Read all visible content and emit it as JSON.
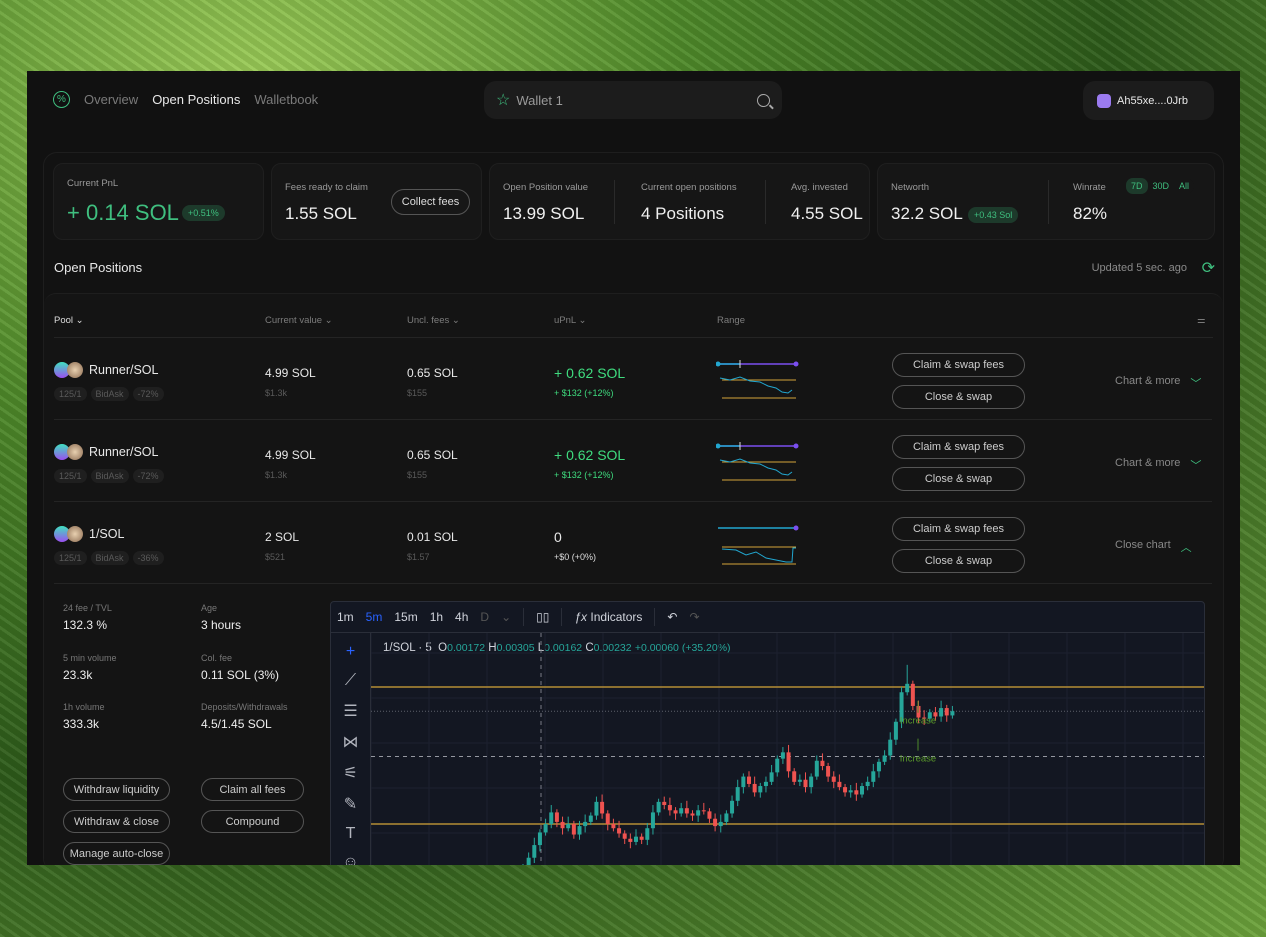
{
  "nav": {
    "items": [
      "Overview",
      "Open Positions",
      "Walletbook"
    ],
    "active": 1
  },
  "search": {
    "value": "Wallet 1"
  },
  "wallet": {
    "address": "Ah55xe....0Jrb"
  },
  "stats": {
    "current_pnl": {
      "label": "Current PnL",
      "value": "+ 0.14 SOL",
      "badge": "+0.51%"
    },
    "fees": {
      "label": "Fees ready to claim",
      "value": "1.55 SOL",
      "button": "Collect fees"
    },
    "open_value": {
      "label": "Open Position value",
      "value": "13.99 SOL"
    },
    "open_positions": {
      "label": "Current open positions",
      "value": "4 Positions"
    },
    "avg_invested": {
      "label": "Avg. invested",
      "value": "4.55 SOL"
    },
    "networth": {
      "label": "Networth",
      "value": "32.2 SOL",
      "badge": "+0.43 Sol"
    },
    "winrate": {
      "label": "Winrate",
      "value": "82%",
      "periods": [
        "7D",
        "30D",
        "All"
      ],
      "active_period": "7D"
    }
  },
  "section": {
    "title": "Open Positions",
    "updated": "Updated 5 sec. ago"
  },
  "table": {
    "headers": [
      "Pool",
      "Current value",
      "Uncl. fees",
      "uPnL",
      "Range"
    ],
    "rows": [
      {
        "pool": "Runner/SOL",
        "tags": [
          "125/1",
          "BidAsk",
          "-72%"
        ],
        "value": "4.99 SOL",
        "value_usd": "$1.3k",
        "fees": "0.65 SOL",
        "fees_usd": "$155",
        "upnl": "+ 0.62 SOL",
        "upnl_sub": "+ $132 (+12%)",
        "claim": "Claim & swap fees",
        "close": "Close & swap",
        "more": "Chart & more"
      },
      {
        "pool": "Runner/SOL",
        "tags": [
          "125/1",
          "BidAsk",
          "-72%"
        ],
        "value": "4.99 SOL",
        "value_usd": "$1.3k",
        "fees": "0.65 SOL",
        "fees_usd": "$155",
        "upnl": "+ 0.62 SOL",
        "upnl_sub": "+ $132 (+12%)",
        "claim": "Claim & swap fees",
        "close": "Close & swap",
        "more": "Chart & more"
      },
      {
        "pool": "1/SOL",
        "tags": [
          "125/1",
          "BidAsk",
          "-36%"
        ],
        "value": "2 SOL",
        "value_usd": "$521",
        "fees": "0.01 SOL",
        "fees_usd": "$1.57",
        "upnl": "0",
        "upnl_sub": "+$0 (+0%)",
        "claim": "Claim & swap fees",
        "close": "Close & swap",
        "more": "Close chart"
      }
    ]
  },
  "details": {
    "fee_tvl": {
      "label": "24 fee / TVL",
      "value": "132.3 %"
    },
    "age": {
      "label": "Age",
      "value": "3 hours"
    },
    "vol5m": {
      "label": "5 min volume",
      "value": "23.3k"
    },
    "col_fee": {
      "label": "Col. fee",
      "value": "0.11 SOL (3%)"
    },
    "vol1h": {
      "label": "1h volume",
      "value": "333.3k"
    },
    "deposits": {
      "label": "Deposits/Withdrawals",
      "value": "4.5/1.45 SOL"
    },
    "buttons": [
      "Withdraw liquidity",
      "Claim all fees",
      "Withdraw & close",
      "Compound",
      "Manage auto-close"
    ]
  },
  "chart_toolbar": {
    "intervals": [
      "1m",
      "5m",
      "15m",
      "1h",
      "4h",
      "D"
    ],
    "active": "5m",
    "indicators": "Indicators"
  },
  "chart_data": {
    "type": "candlestick",
    "symbol": "1/SOL · 5",
    "ohlc_label": {
      "O": "0.00172",
      "H": "0.00305",
      "L": "0.00162",
      "C": "0.00232",
      "change": "+0.00060 (+35.20%)"
    },
    "price_unit": "1e-5 SOL",
    "range_lines": [
      150,
      280
    ],
    "current_line": 257,
    "dashed_line": 214,
    "annotations": [
      "Increase",
      "Increase"
    ],
    "closes": [
      109,
      118,
      130,
      142,
      150,
      161,
      152,
      146,
      150,
      140,
      148,
      152,
      158,
      171,
      160,
      150,
      146,
      141,
      136,
      133,
      138,
      135,
      146,
      161,
      171,
      168,
      163,
      160,
      165,
      160,
      158,
      163,
      162,
      155,
      148,
      152,
      160,
      172,
      185,
      195,
      188,
      180,
      186,
      190,
      199,
      212,
      218,
      200,
      190,
      192,
      185,
      195,
      210,
      205,
      195,
      190,
      185,
      180,
      182,
      178,
      186,
      190,
      200,
      209,
      215,
      230,
      247,
      275,
      283,
      262,
      251,
      250,
      256,
      252,
      260,
      253,
      257
    ]
  },
  "colors": {
    "accent": "#3fbf7f",
    "up": "#26a69a",
    "down": "#ef5350",
    "range": "#d4a53a"
  }
}
